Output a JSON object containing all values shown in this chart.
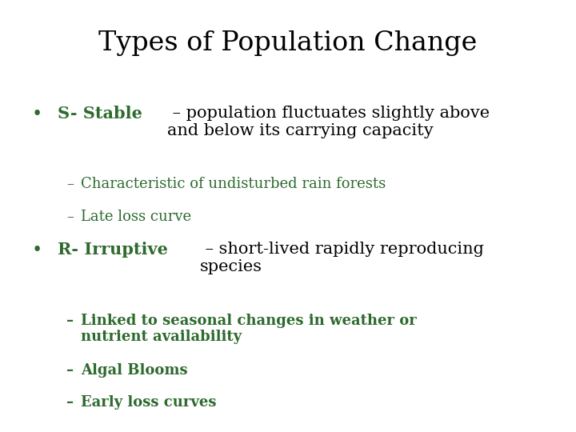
{
  "title": "Types of Population Change",
  "title_color": "#000000",
  "title_fontsize": 24,
  "title_font": "serif",
  "background_color": "#ffffff",
  "green_color": "#2d6a2d",
  "black_color": "#000000",
  "bullet1": {
    "green_text": "S- Stable",
    "black_text": " – population fluctuates slightly above\nand below its carrying capacity",
    "sub1": "Characteristic of undisturbed rain forests",
    "sub2": "Late loss curve"
  },
  "bullet2": {
    "green_text": "R- Irruptive",
    "black_text": " – short-lived rapidly reproducing\nspecies",
    "sub1": "Linked to seasonal changes in weather or\nnutrient availability",
    "sub2": "Algal Blooms",
    "sub3": "Early loss curves"
  },
  "main_fontsize": 15,
  "sub_fontsize": 13,
  "bullet_fontsize": 16
}
